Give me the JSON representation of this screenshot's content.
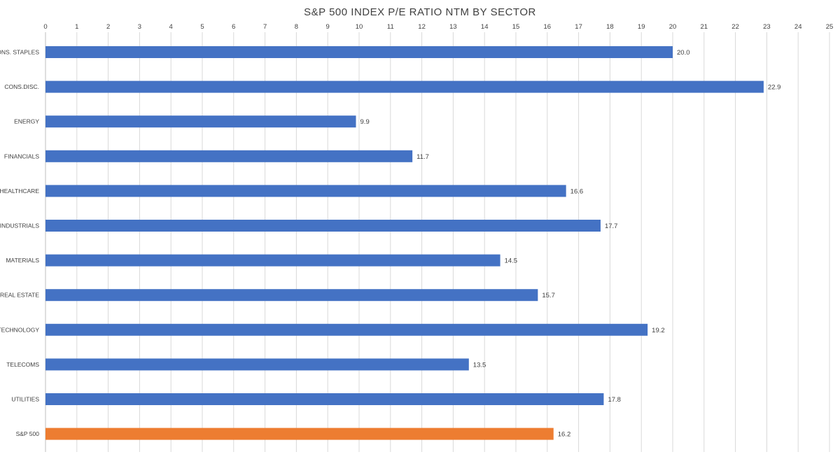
{
  "chart_data": {
    "type": "bar",
    "orientation": "horizontal",
    "title": "S&P 500 INDEX P/E RATIO NTM BY SECTOR",
    "xlabel": "",
    "ylabel": "",
    "xlim": [
      0,
      25
    ],
    "xticks": [
      0,
      1,
      2,
      3,
      4,
      5,
      6,
      7,
      8,
      9,
      10,
      11,
      12,
      13,
      14,
      15,
      16,
      17,
      18,
      19,
      20,
      21,
      22,
      23,
      24,
      25
    ],
    "x_axis_position": "top",
    "grid": true,
    "legend": "none",
    "categories": [
      "CONS. STAPLES",
      "CONS.DISC.",
      "ENERGY",
      "FINANCIALS",
      "HEALTHCARE",
      "INDUSTRIALS",
      "MATERIALS",
      "REAL ESTATE",
      "TECHNOLOGY",
      "TELECOMS",
      "UTILITIES",
      "S&P 500"
    ],
    "values": [
      20.0,
      22.9,
      9.9,
      11.7,
      16.6,
      17.7,
      14.5,
      15.7,
      19.2,
      13.5,
      17.8,
      16.2
    ],
    "data_labels": [
      "20.0",
      "22.9",
      "9.9",
      "11.7",
      "16.6",
      "17.7",
      "14.5",
      "15.7",
      "19.2",
      "13.5",
      "17.8",
      "16.2"
    ],
    "colors": {
      "default": "#4472c4",
      "highlight": "#ed7d31",
      "highlight_category": "S&P 500"
    }
  }
}
